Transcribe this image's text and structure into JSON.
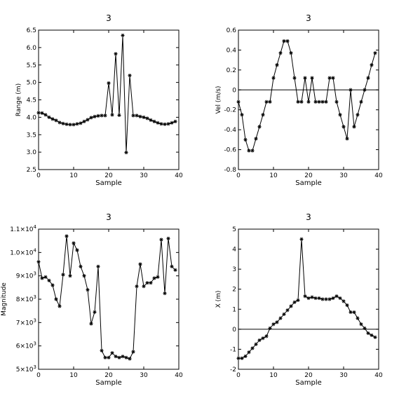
{
  "chart_data": [
    {
      "type": "line",
      "title": "3",
      "xlabel": "Sample",
      "ylabel": "Range (m)",
      "xlim": [
        0,
        40
      ],
      "ylim": [
        2.5,
        6.5
      ],
      "xticks": [
        0,
        10,
        20,
        30,
        40
      ],
      "xtick_labels": [
        "0",
        "10",
        "20",
        "30",
        "40"
      ],
      "yticks": [
        2.5,
        3.0,
        3.5,
        4.0,
        4.5,
        5.0,
        5.5,
        6.0,
        6.5
      ],
      "ytick_labels": [
        "2.5",
        "3.0",
        "3.5",
        "4.0",
        "4.5",
        "5.0",
        "5.5",
        "6.0",
        "6.5"
      ],
      "marker": "asterisk",
      "zero_line": false,
      "x": [
        0,
        1,
        2,
        3,
        4,
        5,
        6,
        7,
        8,
        9,
        10,
        11,
        12,
        13,
        14,
        15,
        16,
        17,
        18,
        19,
        20,
        21,
        22,
        23,
        24,
        25,
        26,
        27,
        28,
        29,
        30,
        31,
        32,
        33,
        34,
        35,
        36,
        37,
        38,
        39
      ],
      "y": [
        4.13,
        4.12,
        4.07,
        4.0,
        3.95,
        3.91,
        3.85,
        3.82,
        3.8,
        3.79,
        3.79,
        3.81,
        3.83,
        3.88,
        3.93,
        3.99,
        4.02,
        4.04,
        4.05,
        4.05,
        4.98,
        4.07,
        5.82,
        4.06,
        6.35,
        2.99,
        5.2,
        4.05,
        4.05,
        4.02,
        4.0,
        3.97,
        3.92,
        3.88,
        3.84,
        3.81,
        3.8,
        3.81,
        3.84,
        3.88
      ]
    },
    {
      "type": "line",
      "title": "3",
      "xlabel": "Sample",
      "ylabel": "Vel (m/s)",
      "xlim": [
        0,
        40
      ],
      "ylim": [
        -0.8,
        0.6
      ],
      "xticks": [
        0,
        10,
        20,
        30,
        40
      ],
      "xtick_labels": [
        "0",
        "10",
        "20",
        "30",
        "40"
      ],
      "yticks": [
        -0.8,
        -0.6,
        -0.4,
        -0.2,
        0,
        0.2,
        0.4,
        0.6
      ],
      "ytick_labels": [
        "-0.8",
        "-0.6",
        "-0.4",
        "-0.2",
        "0",
        "0.2",
        "0.4",
        "0.6"
      ],
      "marker": "asterisk",
      "zero_line": true,
      "x": [
        0,
        1,
        2,
        3,
        4,
        5,
        6,
        7,
        8,
        9,
        10,
        11,
        12,
        13,
        14,
        15,
        16,
        17,
        18,
        19,
        20,
        21,
        22,
        23,
        24,
        25,
        26,
        27,
        28,
        29,
        30,
        31,
        32,
        33,
        34,
        35,
        36,
        37,
        38,
        39
      ],
      "y": [
        -0.12,
        -0.25,
        -0.5,
        -0.61,
        -0.61,
        -0.49,
        -0.37,
        -0.25,
        -0.12,
        -0.12,
        0.12,
        0.25,
        0.37,
        0.49,
        0.49,
        0.37,
        0.12,
        -0.12,
        -0.12,
        0.12,
        -0.12,
        0.12,
        -0.12,
        -0.12,
        -0.12,
        -0.12,
        0.12,
        0.12,
        -0.12,
        -0.25,
        -0.37,
        -0.49,
        0.0,
        -0.37,
        -0.25,
        -0.12,
        0.0,
        0.12,
        0.25,
        0.37
      ]
    },
    {
      "type": "line",
      "title": "3",
      "xlabel": "Sample",
      "ylabel": "Magnitude",
      "xlim": [
        0,
        40
      ],
      "ylim": [
        5000,
        11000
      ],
      "xticks": [
        0,
        10,
        20,
        30,
        40
      ],
      "xtick_labels": [
        "0",
        "10",
        "20",
        "30",
        "40"
      ],
      "yticks": [
        5000,
        6000,
        7000,
        8000,
        9000,
        10000,
        11000
      ],
      "ytick_labels": [
        {
          "m": "5",
          "e": "3"
        },
        {
          "m": "6",
          "e": "3"
        },
        {
          "m": "7",
          "e": "3"
        },
        {
          "m": "8",
          "e": "3"
        },
        {
          "m": "9",
          "e": "3"
        },
        {
          "m": "1.0",
          "e": "4"
        },
        {
          "m": "1.1",
          "e": "4"
        }
      ],
      "tick_label_base": "×10",
      "marker": "asterisk",
      "zero_line": false,
      "x": [
        0,
        1,
        2,
        3,
        4,
        5,
        6,
        7,
        8,
        9,
        10,
        11,
        12,
        13,
        14,
        15,
        16,
        17,
        18,
        19,
        20,
        21,
        22,
        23,
        24,
        25,
        26,
        27,
        28,
        29,
        30,
        31,
        32,
        33,
        34,
        35,
        36,
        37,
        38,
        39
      ],
      "y": [
        9600,
        8900,
        8950,
        8800,
        8600,
        8000,
        7700,
        9050,
        10700,
        9000,
        10400,
        10100,
        9400,
        9000,
        8400,
        6950,
        7450,
        9400,
        5800,
        5500,
        5500,
        5700,
        5550,
        5500,
        5550,
        5500,
        5450,
        5750,
        8550,
        9500,
        8550,
        8700,
        8700,
        8900,
        8950,
        10550,
        8250,
        10600,
        9400,
        9250
      ]
    },
    {
      "type": "line",
      "title": "3",
      "xlabel": "Sample",
      "ylabel": "X (m)",
      "xlim": [
        0,
        40
      ],
      "ylim": [
        -2,
        5
      ],
      "xticks": [
        0,
        10,
        20,
        30,
        40
      ],
      "xtick_labels": [
        "0",
        "10",
        "20",
        "30",
        "40"
      ],
      "yticks": [
        -2,
        -1,
        0,
        1,
        2,
        3,
        4,
        5
      ],
      "ytick_labels": [
        "-2",
        "-1",
        "0",
        "1",
        "2",
        "3",
        "4",
        "5"
      ],
      "marker": "asterisk",
      "zero_line": true,
      "x": [
        0,
        1,
        2,
        3,
        4,
        5,
        6,
        7,
        8,
        9,
        10,
        11,
        12,
        13,
        14,
        15,
        16,
        17,
        18,
        19,
        20,
        21,
        22,
        23,
        24,
        25,
        26,
        27,
        28,
        29,
        30,
        31,
        32,
        33,
        34,
        35,
        36,
        37,
        38,
        39
      ],
      "y": [
        -1.45,
        -1.45,
        -1.35,
        -1.15,
        -0.95,
        -0.75,
        -0.55,
        -0.45,
        -0.35,
        0.05,
        0.25,
        0.35,
        0.55,
        0.75,
        0.95,
        1.15,
        1.35,
        1.45,
        4.5,
        1.65,
        1.55,
        1.6,
        1.55,
        1.55,
        1.5,
        1.5,
        1.5,
        1.55,
        1.65,
        1.55,
        1.4,
        1.2,
        0.85,
        0.85,
        0.55,
        0.25,
        0.05,
        -0.2,
        -0.3,
        -0.4
      ]
    }
  ]
}
